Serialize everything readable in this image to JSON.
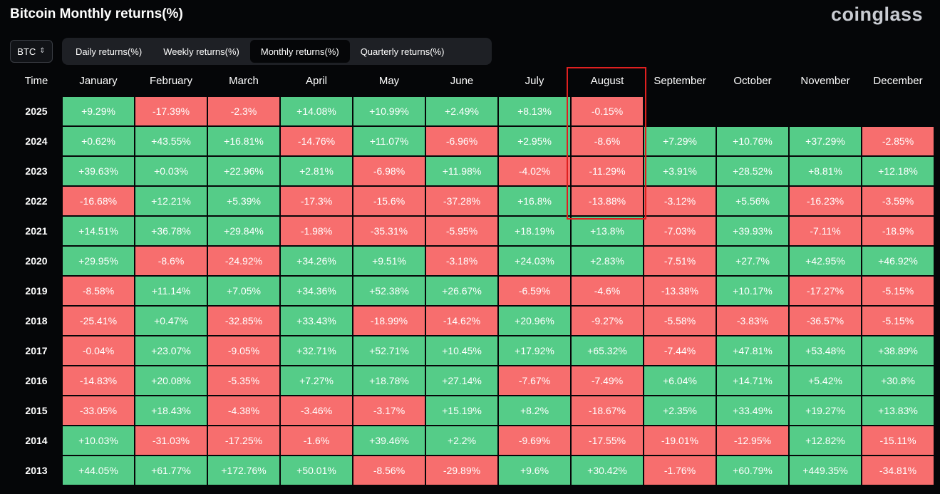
{
  "title": "Bitcoin Monthly returns(%)",
  "brand": "coinglass",
  "asset_select": {
    "value": "BTC"
  },
  "tabs": [
    {
      "label": "Daily returns(%)",
      "active": false
    },
    {
      "label": "Weekly returns(%)",
      "active": false
    },
    {
      "label": "Monthly returns(%)",
      "active": true
    },
    {
      "label": "Quarterly returns(%)",
      "active": false
    }
  ],
  "colors": {
    "positive": "#55cc88",
    "negative": "#f76e6e",
    "highlight": "#e02020"
  },
  "table": {
    "time_header": "Time",
    "months": [
      "January",
      "February",
      "March",
      "April",
      "May",
      "June",
      "July",
      "August",
      "September",
      "October",
      "November",
      "December"
    ],
    "rows": [
      {
        "year": "2025",
        "values": [
          "+9.29%",
          "-17.39%",
          "-2.3%",
          "+14.08%",
          "+10.99%",
          "+2.49%",
          "+8.13%",
          "-0.15%",
          "",
          "",
          "",
          ""
        ]
      },
      {
        "year": "2024",
        "values": [
          "+0.62%",
          "+43.55%",
          "+16.81%",
          "-14.76%",
          "+11.07%",
          "-6.96%",
          "+2.95%",
          "-8.6%",
          "+7.29%",
          "+10.76%",
          "+37.29%",
          "-2.85%"
        ]
      },
      {
        "year": "2023",
        "values": [
          "+39.63%",
          "+0.03%",
          "+22.96%",
          "+2.81%",
          "-6.98%",
          "+11.98%",
          "-4.02%",
          "-11.29%",
          "+3.91%",
          "+28.52%",
          "+8.81%",
          "+12.18%"
        ]
      },
      {
        "year": "2022",
        "values": [
          "-16.68%",
          "+12.21%",
          "+5.39%",
          "-17.3%",
          "-15.6%",
          "-37.28%",
          "+16.8%",
          "-13.88%",
          "-3.12%",
          "+5.56%",
          "-16.23%",
          "-3.59%"
        ]
      },
      {
        "year": "2021",
        "values": [
          "+14.51%",
          "+36.78%",
          "+29.84%",
          "-1.98%",
          "-35.31%",
          "-5.95%",
          "+18.19%",
          "+13.8%",
          "-7.03%",
          "+39.93%",
          "-7.11%",
          "-18.9%"
        ]
      },
      {
        "year": "2020",
        "values": [
          "+29.95%",
          "-8.6%",
          "-24.92%",
          "+34.26%",
          "+9.51%",
          "-3.18%",
          "+24.03%",
          "+2.83%",
          "-7.51%",
          "+27.7%",
          "+42.95%",
          "+46.92%"
        ]
      },
      {
        "year": "2019",
        "values": [
          "-8.58%",
          "+11.14%",
          "+7.05%",
          "+34.36%",
          "+52.38%",
          "+26.67%",
          "-6.59%",
          "-4.6%",
          "-13.38%",
          "+10.17%",
          "-17.27%",
          "-5.15%"
        ]
      },
      {
        "year": "2018",
        "values": [
          "-25.41%",
          "+0.47%",
          "-32.85%",
          "+33.43%",
          "-18.99%",
          "-14.62%",
          "+20.96%",
          "-9.27%",
          "-5.58%",
          "-3.83%",
          "-36.57%",
          "-5.15%"
        ]
      },
      {
        "year": "2017",
        "values": [
          "-0.04%",
          "+23.07%",
          "-9.05%",
          "+32.71%",
          "+52.71%",
          "+10.45%",
          "+17.92%",
          "+65.32%",
          "-7.44%",
          "+47.81%",
          "+53.48%",
          "+38.89%"
        ]
      },
      {
        "year": "2016",
        "values": [
          "-14.83%",
          "+20.08%",
          "-5.35%",
          "+7.27%",
          "+18.78%",
          "+27.14%",
          "-7.67%",
          "-7.49%",
          "+6.04%",
          "+14.71%",
          "+5.42%",
          "+30.8%"
        ]
      },
      {
        "year": "2015",
        "values": [
          "-33.05%",
          "+18.43%",
          "-4.38%",
          "-3.46%",
          "-3.17%",
          "+15.19%",
          "+8.2%",
          "-18.67%",
          "+2.35%",
          "+33.49%",
          "+19.27%",
          "+13.83%"
        ]
      },
      {
        "year": "2014",
        "values": [
          "+10.03%",
          "-31.03%",
          "-17.25%",
          "-1.6%",
          "+39.46%",
          "+2.2%",
          "-9.69%",
          "-17.55%",
          "-19.01%",
          "-12.95%",
          "+12.82%",
          "-15.11%"
        ]
      },
      {
        "year": "2013",
        "values": [
          "+44.05%",
          "+61.77%",
          "+172.76%",
          "+50.01%",
          "-8.56%",
          "-29.89%",
          "+9.6%",
          "+30.42%",
          "-1.76%",
          "+60.79%",
          "+449.35%",
          "-34.81%"
        ]
      }
    ]
  }
}
